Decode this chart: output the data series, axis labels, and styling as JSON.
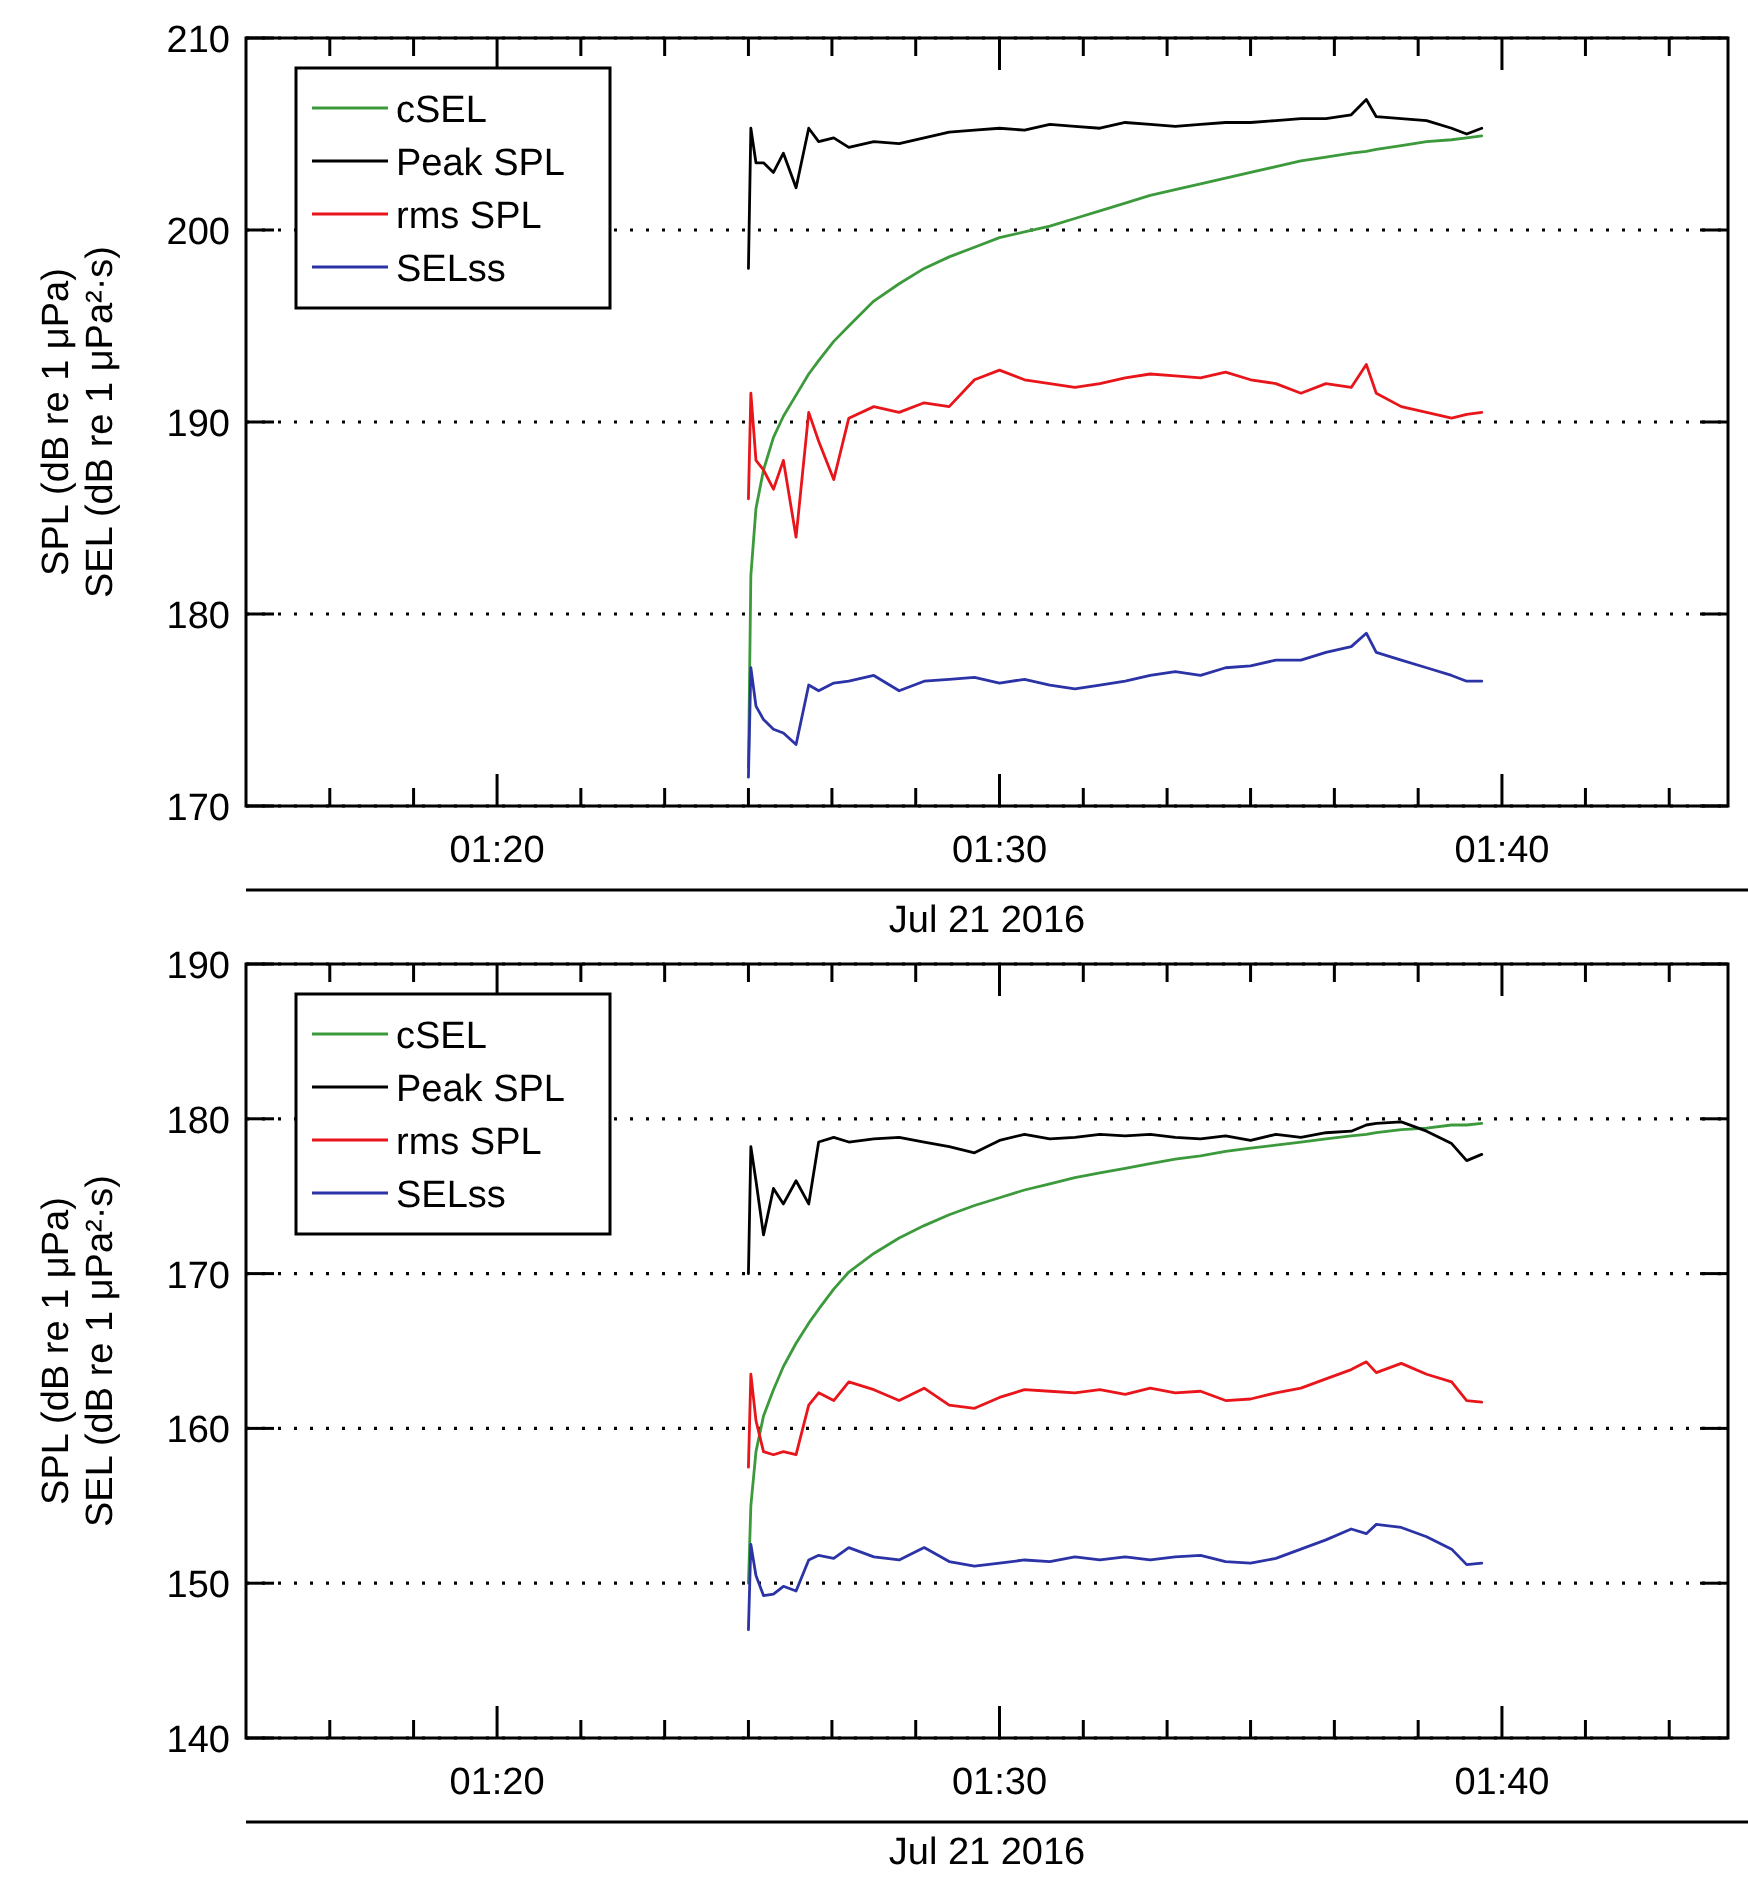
{
  "chart_data": [
    {
      "type": "line",
      "xlabel": "Jul 21 2016",
      "ylabel": "SPL (dB re 1 μPa)\nSEL (dB re 1 μPa²·s)",
      "legend": "top left",
      "grid": "y",
      "xlim": [
        1.25,
        1.7417
      ],
      "xticks": [
        {
          "value": 1.2778,
          "label": null
        },
        {
          "value": 1.3056,
          "label": null
        },
        {
          "value": 1.3333,
          "label": "01:20"
        },
        {
          "value": 1.3611,
          "label": null
        },
        {
          "value": 1.3889,
          "label": null
        },
        {
          "value": 1.4167,
          "label": null
        },
        {
          "value": 1.4444,
          "label": null
        },
        {
          "value": 1.4722,
          "label": null
        },
        {
          "value": 1.5,
          "label": "01:30"
        },
        {
          "value": 1.5278,
          "label": null
        },
        {
          "value": 1.5556,
          "label": null
        },
        {
          "value": 1.5833,
          "label": null
        },
        {
          "value": 1.6111,
          "label": null
        },
        {
          "value": 1.6389,
          "label": null
        },
        {
          "value": 1.6667,
          "label": "01:40"
        },
        {
          "value": 1.6944,
          "label": null
        },
        {
          "value": 1.7222,
          "label": null
        }
      ],
      "ylim": [
        170,
        210
      ],
      "yticks": [
        170,
        180,
        190,
        200,
        210
      ],
      "x": [
        1.4167,
        1.4175,
        1.4192,
        1.4217,
        1.425,
        1.4283,
        1.4325,
        1.4367,
        1.44,
        1.445,
        1.45,
        1.4583,
        1.4667,
        1.475,
        1.4833,
        1.4917,
        1.5,
        1.5083,
        1.5167,
        1.525,
        1.5333,
        1.5417,
        1.55,
        1.5583,
        1.5667,
        1.575,
        1.5833,
        1.5917,
        1.6,
        1.6083,
        1.6167,
        1.6217,
        1.625,
        1.6333,
        1.6417,
        1.65,
        1.655,
        1.66
      ],
      "series": [
        {
          "name": "cSEL",
          "color": "#3c9a3c",
          "values": [
            172,
            182,
            185.5,
            187.5,
            189.2,
            190.3,
            191.4,
            192.5,
            193.2,
            194.2,
            195,
            196.3,
            197.2,
            198,
            198.6,
            199.1,
            199.6,
            199.9,
            200.2,
            200.6,
            201,
            201.4,
            201.8,
            202.1,
            202.4,
            202.7,
            203,
            203.3,
            203.6,
            203.8,
            204,
            204.1,
            204.2,
            204.4,
            204.6,
            204.7,
            204.8,
            204.9
          ]
        },
        {
          "name": "Peak SPL",
          "color": "#000000",
          "values": [
            198,
            205.3,
            203.5,
            203.5,
            203,
            204,
            202.2,
            205.3,
            204.6,
            204.8,
            204.3,
            204.6,
            204.5,
            204.8,
            205.1,
            205.2,
            205.3,
            205.2,
            205.5,
            205.4,
            205.3,
            205.6,
            205.5,
            205.4,
            205.5,
            205.6,
            205.6,
            205.7,
            205.8,
            205.8,
            206,
            206.8,
            205.9,
            205.8,
            205.7,
            205.3,
            205,
            205.3
          ]
        },
        {
          "name": "rms SPL",
          "color": "#e8151b",
          "values": [
            186,
            191.5,
            188,
            187.5,
            186.5,
            188,
            184,
            190.5,
            189,
            187,
            190.2,
            190.8,
            190.5,
            191,
            190.8,
            192.2,
            192.7,
            192.2,
            192,
            191.8,
            192,
            192.3,
            192.5,
            192.4,
            192.3,
            192.6,
            192.2,
            192,
            191.5,
            192,
            191.8,
            193,
            191.5,
            190.8,
            190.5,
            190.2,
            190.4,
            190.5
          ]
        },
        {
          "name": "SELss",
          "color": "#2b33a6",
          "values": [
            171.5,
            177.2,
            175.2,
            174.5,
            174,
            173.8,
            173.2,
            176.3,
            176,
            176.4,
            176.5,
            176.8,
            176,
            176.5,
            176.6,
            176.7,
            176.4,
            176.6,
            176.3,
            176.1,
            176.3,
            176.5,
            176.8,
            177,
            176.8,
            177.2,
            177.3,
            177.6,
            177.6,
            178,
            178.3,
            179,
            178,
            177.6,
            177.2,
            176.8,
            176.5,
            176.5
          ]
        }
      ]
    },
    {
      "type": "line",
      "xlabel": "Jul 21 2016",
      "ylabel": "SPL (dB re 1 μPa)\nSEL (dB re 1 μPa²·s)",
      "legend": "top left",
      "grid": "y",
      "xlim": [
        1.25,
        1.7417
      ],
      "xticks": [
        {
          "value": 1.2778,
          "label": null
        },
        {
          "value": 1.3056,
          "label": null
        },
        {
          "value": 1.3333,
          "label": "01:20"
        },
        {
          "value": 1.3611,
          "label": null
        },
        {
          "value": 1.3889,
          "label": null
        },
        {
          "value": 1.4167,
          "label": null
        },
        {
          "value": 1.4444,
          "label": null
        },
        {
          "value": 1.4722,
          "label": null
        },
        {
          "value": 1.5,
          "label": "01:30"
        },
        {
          "value": 1.5278,
          "label": null
        },
        {
          "value": 1.5556,
          "label": null
        },
        {
          "value": 1.5833,
          "label": null
        },
        {
          "value": 1.6111,
          "label": null
        },
        {
          "value": 1.6389,
          "label": null
        },
        {
          "value": 1.6667,
          "label": "01:40"
        },
        {
          "value": 1.6944,
          "label": null
        },
        {
          "value": 1.7222,
          "label": null
        }
      ],
      "ylim": [
        140,
        190
      ],
      "yticks": [
        140,
        150,
        160,
        170,
        180,
        190
      ],
      "x": [
        1.4167,
        1.4175,
        1.4192,
        1.4217,
        1.425,
        1.4283,
        1.4325,
        1.4367,
        1.44,
        1.445,
        1.45,
        1.4583,
        1.4667,
        1.475,
        1.4833,
        1.4917,
        1.5,
        1.5083,
        1.5167,
        1.525,
        1.5333,
        1.5417,
        1.55,
        1.5583,
        1.5667,
        1.575,
        1.5833,
        1.5917,
        1.6,
        1.6083,
        1.6167,
        1.6217,
        1.625,
        1.6333,
        1.6417,
        1.65,
        1.655,
        1.66
      ],
      "series": [
        {
          "name": "cSEL",
          "color": "#3c9a3c",
          "values": [
            150,
            155,
            158.5,
            160.8,
            162.5,
            164,
            165.5,
            166.8,
            167.7,
            169,
            170.1,
            171.3,
            172.3,
            173.1,
            173.8,
            174.4,
            174.9,
            175.4,
            175.8,
            176.2,
            176.5,
            176.8,
            177.1,
            177.4,
            177.6,
            177.9,
            178.1,
            178.3,
            178.5,
            178.7,
            178.9,
            179,
            179.1,
            179.3,
            179.4,
            179.6,
            179.6,
            179.7
          ]
        },
        {
          "name": "Peak SPL",
          "color": "#000000",
          "values": [
            170,
            178.2,
            176,
            172.5,
            175.5,
            174.5,
            176,
            174.5,
            178.5,
            178.8,
            178.5,
            178.7,
            178.8,
            178.5,
            178.2,
            177.8,
            178.6,
            179,
            178.7,
            178.8,
            179,
            178.9,
            179,
            178.8,
            178.7,
            178.9,
            178.6,
            179,
            178.8,
            179.1,
            179.2,
            179.6,
            179.7,
            179.8,
            179.2,
            178.4,
            177.3,
            177.7
          ]
        },
        {
          "name": "rms SPL",
          "color": "#e8151b",
          "values": [
            157.5,
            163.5,
            160.5,
            158.5,
            158.3,
            158.5,
            158.3,
            161.5,
            162.3,
            161.8,
            163,
            162.5,
            161.8,
            162.6,
            161.5,
            161.3,
            162,
            162.5,
            162.4,
            162.3,
            162.5,
            162.2,
            162.6,
            162.3,
            162.4,
            161.8,
            161.9,
            162.3,
            162.6,
            163.2,
            163.8,
            164.3,
            163.6,
            164.2,
            163.5,
            163,
            161.8,
            161.7
          ]
        },
        {
          "name": "SELss",
          "color": "#2b33a6",
          "values": [
            147,
            152.5,
            150.5,
            149.2,
            149.3,
            149.8,
            149.5,
            151.5,
            151.8,
            151.6,
            152.3,
            151.7,
            151.5,
            152.3,
            151.4,
            151.1,
            151.3,
            151.5,
            151.4,
            151.7,
            151.5,
            151.7,
            151.5,
            151.7,
            151.8,
            151.4,
            151.3,
            151.6,
            152.2,
            152.8,
            153.5,
            153.2,
            153.8,
            153.6,
            153,
            152.2,
            151.2,
            151.3
          ]
        }
      ]
    }
  ]
}
